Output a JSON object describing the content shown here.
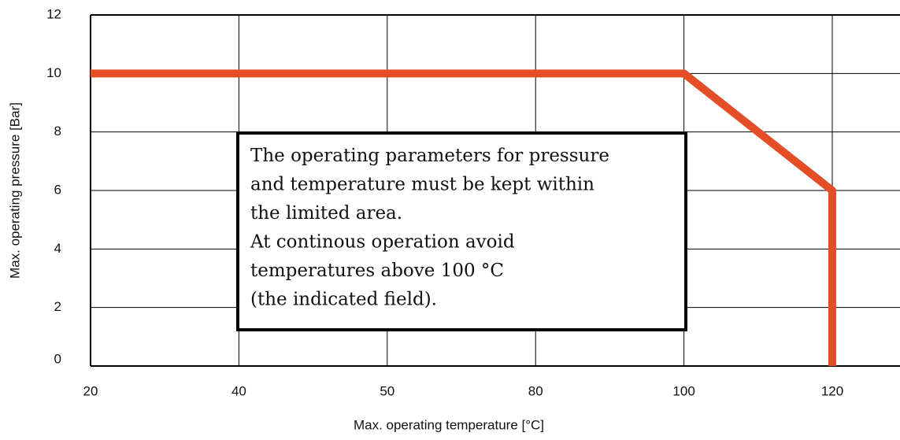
{
  "chart_data": {
    "type": "line",
    "xlabel": "Max. operating temperature [°C]",
    "ylabel": "Max. operating pressure [Bar]",
    "categories": [
      20,
      40,
      50,
      80,
      100,
      120
    ],
    "series": [
      {
        "color": "#e34e26",
        "x": [
          20,
          100,
          120,
          120
        ],
        "values": [
          10,
          10,
          6,
          0
        ]
      }
    ],
    "ylim": [
      0,
      12
    ],
    "yticks": [
      0,
      2,
      4,
      6,
      8,
      10,
      12
    ],
    "grid": true,
    "annotation": [
      "The operating parameters for pressure",
      "and temperature must be kept within",
      "the limited area.",
      "At continous operation avoid",
      "temperatures above 100 °C",
      "(the indicated field)."
    ]
  }
}
